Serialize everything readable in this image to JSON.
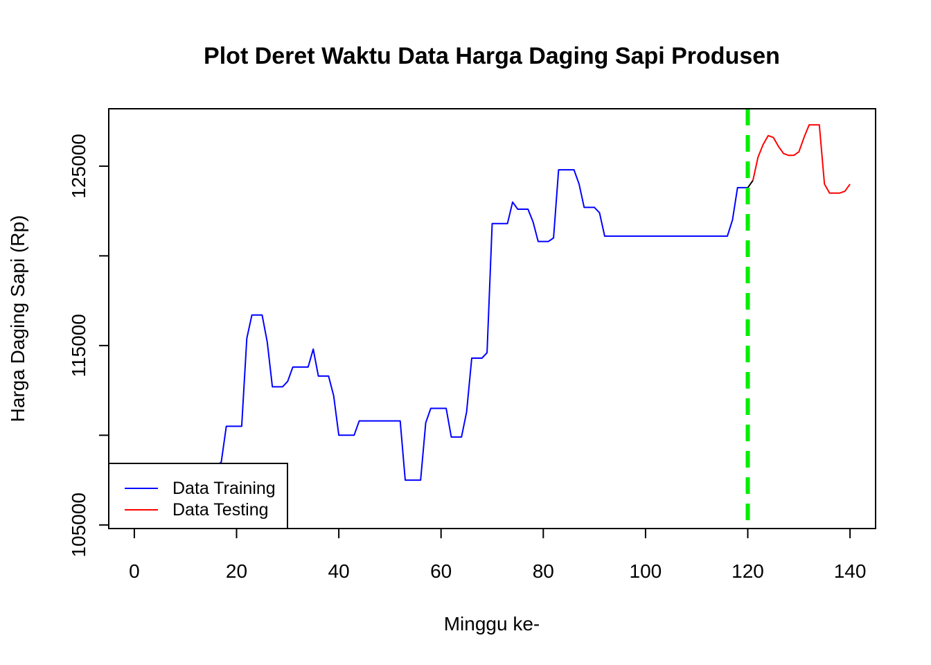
{
  "chart_data": {
    "type": "line",
    "title": "Plot Deret Waktu Data Harga Daging Sapi Produsen",
    "xlabel": "Minggu ke-",
    "ylabel": "Harga Daging Sapi (Rp)",
    "xlim": [
      -5,
      145
    ],
    "ylim": [
      104800,
      128200
    ],
    "x_ticks": [
      0,
      20,
      40,
      60,
      80,
      100,
      120,
      140
    ],
    "y_ticks": [
      105000,
      110000,
      115000,
      120000,
      125000
    ],
    "y_tick_labels": [
      "105000",
      "",
      "115000",
      "",
      "125000"
    ],
    "grid": false,
    "legend": {
      "position": "bottom-left",
      "entries": [
        {
          "label": "Data Training",
          "color": "#0000ff"
        },
        {
          "label": "Data Testing",
          "color": "#ff0000"
        }
      ]
    },
    "split_line": {
      "x": 120,
      "color": "#00ee00",
      "style": "dashed"
    },
    "series": [
      {
        "name": "Data Training",
        "color": "#0000ff",
        "points": [
          [
            1,
            105000
          ],
          [
            2,
            105000
          ],
          [
            3,
            105000
          ],
          [
            4,
            105000
          ],
          [
            5,
            105000
          ],
          [
            6,
            105000
          ],
          [
            7,
            105000
          ],
          [
            8,
            105000
          ],
          [
            9,
            105000
          ],
          [
            10,
            105000
          ],
          [
            11,
            107000
          ],
          [
            12,
            107500
          ],
          [
            13,
            108000
          ],
          [
            14,
            108100
          ],
          [
            15,
            108200
          ],
          [
            16,
            108300
          ],
          [
            17,
            108500
          ],
          [
            18,
            110500
          ],
          [
            19,
            110500
          ],
          [
            20,
            110500
          ],
          [
            21,
            110500
          ],
          [
            22,
            115400
          ],
          [
            23,
            116700
          ],
          [
            24,
            116700
          ],
          [
            25,
            116700
          ],
          [
            26,
            115200
          ],
          [
            27,
            112700
          ],
          [
            28,
            112700
          ],
          [
            29,
            112700
          ],
          [
            30,
            113000
          ],
          [
            31,
            113800
          ],
          [
            32,
            113800
          ],
          [
            33,
            113800
          ],
          [
            34,
            113800
          ],
          [
            35,
            114800
          ],
          [
            36,
            113300
          ],
          [
            37,
            113300
          ],
          [
            38,
            113300
          ],
          [
            39,
            112200
          ],
          [
            40,
            110000
          ],
          [
            41,
            110000
          ],
          [
            42,
            110000
          ],
          [
            43,
            110000
          ],
          [
            44,
            110800
          ],
          [
            45,
            110800
          ],
          [
            46,
            110800
          ],
          [
            47,
            110800
          ],
          [
            48,
            110800
          ],
          [
            49,
            110800
          ],
          [
            50,
            110800
          ],
          [
            51,
            110800
          ],
          [
            52,
            110800
          ],
          [
            53,
            107500
          ],
          [
            54,
            107500
          ],
          [
            55,
            107500
          ],
          [
            56,
            107500
          ],
          [
            57,
            110700
          ],
          [
            58,
            111500
          ],
          [
            59,
            111500
          ],
          [
            60,
            111500
          ],
          [
            61,
            111500
          ],
          [
            62,
            109900
          ],
          [
            63,
            109900
          ],
          [
            64,
            109900
          ],
          [
            65,
            111300
          ],
          [
            66,
            114300
          ],
          [
            67,
            114300
          ],
          [
            68,
            114300
          ],
          [
            69,
            114600
          ],
          [
            70,
            121800
          ],
          [
            71,
            121800
          ],
          [
            72,
            121800
          ],
          [
            73,
            121800
          ],
          [
            74,
            123000
          ],
          [
            75,
            122600
          ],
          [
            76,
            122600
          ],
          [
            77,
            122600
          ],
          [
            78,
            121900
          ],
          [
            79,
            120800
          ],
          [
            80,
            120800
          ],
          [
            81,
            120800
          ],
          [
            82,
            121000
          ],
          [
            83,
            124800
          ],
          [
            84,
            124800
          ],
          [
            85,
            124800
          ],
          [
            86,
            124800
          ],
          [
            87,
            124000
          ],
          [
            88,
            122700
          ],
          [
            89,
            122700
          ],
          [
            90,
            122700
          ],
          [
            91,
            122400
          ],
          [
            92,
            121100
          ],
          [
            93,
            121100
          ],
          [
            94,
            121100
          ],
          [
            95,
            121100
          ],
          [
            96,
            121100
          ],
          [
            97,
            121100
          ],
          [
            98,
            121100
          ],
          [
            99,
            121100
          ],
          [
            100,
            121100
          ],
          [
            101,
            121100
          ],
          [
            102,
            121100
          ],
          [
            103,
            121100
          ],
          [
            104,
            121100
          ],
          [
            105,
            121100
          ],
          [
            106,
            121100
          ],
          [
            107,
            121100
          ],
          [
            108,
            121100
          ],
          [
            109,
            121100
          ],
          [
            110,
            121100
          ],
          [
            111,
            121100
          ],
          [
            112,
            121100
          ],
          [
            113,
            121100
          ],
          [
            114,
            121100
          ],
          [
            115,
            121100
          ],
          [
            116,
            121100
          ],
          [
            117,
            122000
          ],
          [
            118,
            123800
          ],
          [
            119,
            123800
          ],
          [
            120,
            123800
          ]
        ]
      },
      {
        "name": "Data Testing",
        "color": "#ff0000",
        "points": [
          [
            121,
            124200
          ],
          [
            122,
            125500
          ],
          [
            123,
            126200
          ],
          [
            124,
            126700
          ],
          [
            125,
            126600
          ],
          [
            126,
            126100
          ],
          [
            127,
            125700
          ],
          [
            128,
            125600
          ],
          [
            129,
            125600
          ],
          [
            130,
            125800
          ],
          [
            131,
            126600
          ],
          [
            132,
            127300
          ],
          [
            133,
            127300
          ],
          [
            134,
            127300
          ],
          [
            135,
            124000
          ],
          [
            136,
            123500
          ],
          [
            137,
            123500
          ],
          [
            138,
            123500
          ],
          [
            139,
            123600
          ],
          [
            140,
            124000
          ]
        ]
      }
    ]
  }
}
